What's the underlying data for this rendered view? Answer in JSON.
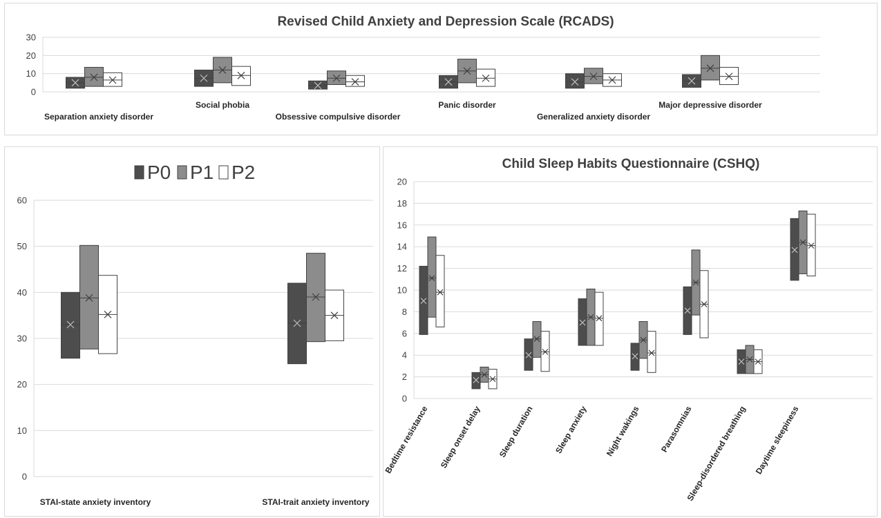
{
  "series": [
    {
      "name": "P0",
      "color": "#4d4d4d"
    },
    {
      "name": "P1",
      "color": "#8c8c8c"
    },
    {
      "name": "P2",
      "color": "#ffffff"
    }
  ],
  "chart_data": [
    {
      "type": "box",
      "title": "Revised Child Anxiety and Depression Scale (RCADS)",
      "categories": [
        "Separation anxiety disorder",
        "Social phobia",
        "Obsessive compulsive disorder",
        "Panic disorder",
        "Generalized anxiety disorder",
        "Major depressive disorder"
      ],
      "yticks": [
        "0",
        "10",
        "20",
        "30"
      ],
      "ylim": [
        0,
        30
      ],
      "grid": true,
      "series": [
        {
          "name": "P0",
          "low": [
            2,
            3,
            1.5,
            2,
            2,
            2.5
          ],
          "high": [
            8,
            12,
            6,
            9,
            10,
            9.5
          ],
          "mean": [
            5,
            7.5,
            3.5,
            5.5,
            5.5,
            6
          ]
        },
        {
          "name": "P1",
          "low": [
            3,
            5,
            4,
            5,
            4.5,
            6.5
          ],
          "high": [
            13.5,
            19,
            11.5,
            18,
            13,
            20
          ],
          "mean": [
            8,
            12,
            7.5,
            11.5,
            8.5,
            13
          ]
        },
        {
          "name": "P2",
          "low": [
            3,
            3.5,
            3,
            3,
            3,
            4
          ],
          "high": [
            10.5,
            14,
            9,
            12.5,
            10,
            13.5
          ],
          "mean": [
            6.5,
            9,
            5.5,
            7.5,
            6.5,
            8.5
          ]
        }
      ]
    },
    {
      "type": "box",
      "title": "",
      "legend": "top",
      "categories": [
        "STAI-state anxiety inventory",
        "STAI-trait anxiety inventory"
      ],
      "yticks": [
        "0",
        "10",
        "20",
        "30",
        "40",
        "50",
        "60"
      ],
      "ylim": [
        0,
        60
      ],
      "grid": true,
      "series": [
        {
          "name": "P0",
          "low": [
            25.7,
            24.5
          ],
          "high": [
            40,
            42
          ],
          "mean": [
            33,
            33.3
          ]
        },
        {
          "name": "P1",
          "low": [
            27.7,
            29.3
          ],
          "high": [
            50.2,
            48.5
          ],
          "mean": [
            38.8,
            39
          ]
        },
        {
          "name": "P2",
          "low": [
            26.7,
            29.5
          ],
          "high": [
            43.7,
            40.5
          ],
          "mean": [
            35.2,
            35
          ]
        }
      ]
    },
    {
      "type": "box",
      "title": "Child Sleep Habits Questionnaire (CSHQ)",
      "categories": [
        "Bedtime resistance",
        "Sleep onset delay",
        "Sleep duration",
        "Sleep anxiety",
        "Night wakings",
        "Parasomnias",
        "Sleep-disordered breathing",
        "Daytime sleepiness"
      ],
      "yticks": [
        "0",
        "2",
        "4",
        "6",
        "8",
        "10",
        "12",
        "14",
        "16",
        "18",
        "20"
      ],
      "ylim": [
        0,
        20
      ],
      "grid": true,
      "series": [
        {
          "name": "P0",
          "low": [
            5.9,
            0.9,
            2.6,
            4.9,
            2.6,
            5.9,
            2.3,
            10.9
          ],
          "high": [
            12.2,
            2.4,
            5.5,
            9.2,
            5.1,
            10.3,
            4.5,
            16.6
          ],
          "mean": [
            9,
            1.7,
            4,
            7,
            3.9,
            8.1,
            3.4,
            13.7
          ]
        },
        {
          "name": "P1",
          "low": [
            7.5,
            1.5,
            3.8,
            4.9,
            3.7,
            7.7,
            2.3,
            11.5
          ],
          "high": [
            14.9,
            2.9,
            7.1,
            10.1,
            7.1,
            13.7,
            4.9,
            17.3
          ],
          "mean": [
            11.1,
            2.2,
            5.5,
            7.5,
            5.4,
            10.7,
            3.6,
            14.4
          ]
        },
        {
          "name": "P2",
          "low": [
            6.6,
            0.9,
            2.5,
            4.9,
            2.4,
            5.6,
            2.3,
            11.3
          ],
          "high": [
            13.2,
            2.7,
            6.2,
            9.8,
            6.2,
            11.8,
            4.5,
            17
          ],
          "mean": [
            9.8,
            1.8,
            4.3,
            7.4,
            4.2,
            8.7,
            3.4,
            14.1
          ]
        }
      ]
    }
  ]
}
